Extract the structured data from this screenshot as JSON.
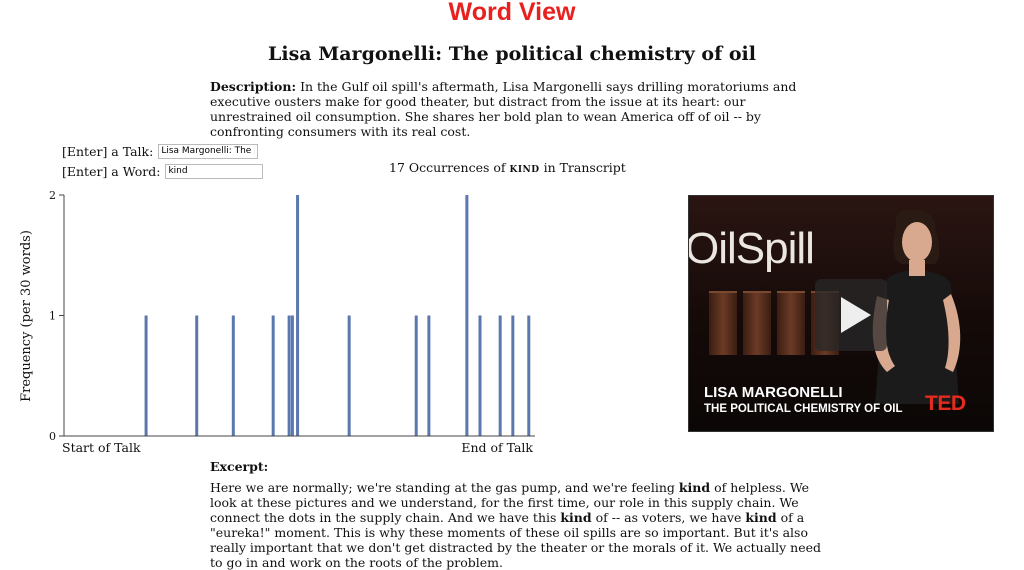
{
  "app": {
    "title": "Word View"
  },
  "talk": {
    "title": "Lisa Margonelli: The political chemistry of oil",
    "description_label": "Description:",
    "description_text": "In the Gulf oil spill's aftermath, Lisa Margonelli says drilling moratoriums and executive ousters make for good theater, but distract from the issue at its heart: our unrestrained oil consumption. She shares her bold plan to wean America off of oil -- by confronting consumers with its real cost."
  },
  "controls": {
    "talk_label": "[Enter] a Talk:",
    "talk_value": "Lisa Margonelli: The p",
    "word_label": "[Enter] a Word:",
    "word_value": "kind"
  },
  "occurrences": {
    "prefix": "17 Occurrences of",
    "keyword": "kind",
    "suffix": "in Transcript"
  },
  "chart_data": {
    "type": "bar",
    "title": "",
    "ylabel": "Frequency (per 30 words)",
    "xlabel_start": "Start of Talk",
    "xlabel_end": "End of Talk",
    "ylim": [
      0,
      2
    ],
    "yticks": [
      "0",
      "1",
      "2"
    ],
    "xlim": [
      0,
      100
    ],
    "x": [
      17.5,
      28.3,
      36.1,
      44.6,
      48.0,
      48.7,
      49.8,
      60.8,
      75.1,
      77.8,
      85.9,
      88.7,
      93.0,
      95.7,
      99.1
    ],
    "values": [
      1,
      1,
      1,
      1,
      1,
      1,
      2,
      1,
      1,
      1,
      2,
      1,
      1,
      1,
      1
    ],
    "bar_color": "#5a78ad",
    "grid": false
  },
  "excerpt": {
    "label": "Excerpt:",
    "segments": [
      {
        "text": "Here we are normally; we're standing at the gas pump, and we're feeling ",
        "bold": false
      },
      {
        "text": "kind",
        "bold": true
      },
      {
        "text": " of helpless. We look at these pictures and we understand, for the first time, our role in this supply chain. We connect the dots in the supply chain. And we have this ",
        "bold": false
      },
      {
        "text": "kind",
        "bold": true
      },
      {
        "text": " of -- as voters, we have ",
        "bold": false
      },
      {
        "text": "kind",
        "bold": true
      },
      {
        "text": " of a \"eureka!\" moment. This is why these moments of these oil spills are so important. But it's also really important that we don't get distracted by the theater or the morals of it. We actually need to go in and work on the roots of the problem.",
        "bold": false
      }
    ]
  },
  "video": {
    "backdrop_text": "OilSpill",
    "name": "LISA MARGONELLI",
    "subtitle": "THE POLITICAL CHEMISTRY OF OIL",
    "brand": "TED",
    "brand_color": "#e62b1e"
  }
}
